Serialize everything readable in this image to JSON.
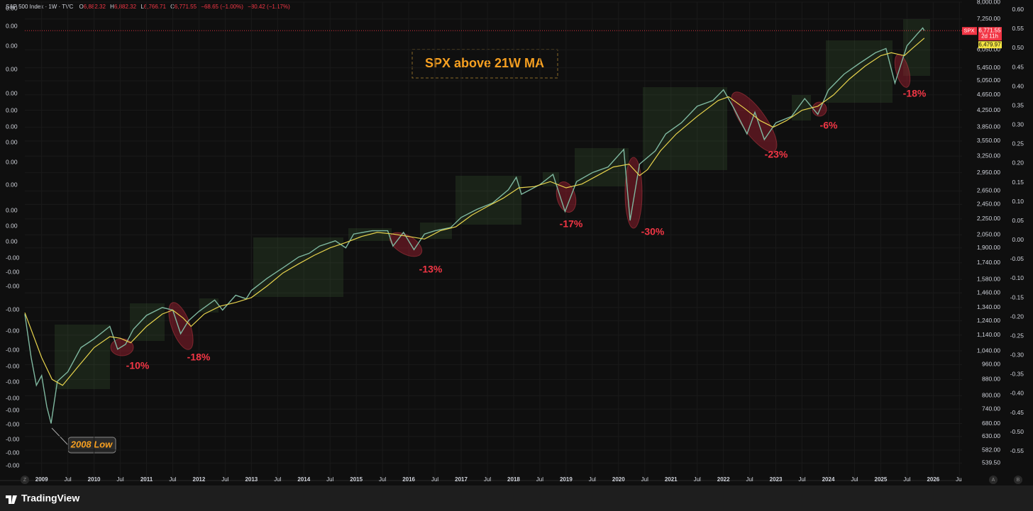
{
  "chart_data": {
    "type": "line",
    "title": "S&P 500 Index · 1W · TVC",
    "header": {
      "open_label": "O",
      "open": "6,882.32",
      "high_label": "H",
      "high": "6,882.32",
      "low_label": "L",
      "low": "6,766.71",
      "close_label": "C",
      "close": "6,771.55",
      "change": "−68.65 (−1.00%)",
      "change2": "−80.42 (−1.17%)"
    },
    "symbol": "SPX",
    "last_price": {
      "value": 6771.55,
      "label": "6,771.55"
    },
    "countdown": "2d 11h",
    "ma_last": {
      "value": 6479.97,
      "label": "6,479.97"
    },
    "callout": "SPX above 21W MA",
    "low_label": "2008 Low",
    "drawdown_labels": [
      "-10%",
      "-18%",
      "-13%",
      "-17%",
      "-30%",
      "-23%",
      "-6%",
      "-18%"
    ],
    "brand": "TradingView",
    "axis_buttons": [
      "Z",
      "A",
      "B"
    ],
    "log_scale": true,
    "xlim": [
      2008.68,
      2026.55
    ],
    "xticks": [
      2009,
      {
        "value": 2009.5,
        "label": "Jul"
      },
      2010,
      {
        "value": 2010.5,
        "label": "Jul"
      },
      2011,
      {
        "value": 2011.5,
        "label": "Jul"
      },
      2012,
      {
        "value": 2012.5,
        "label": "Jul"
      },
      2013,
      {
        "value": 2013.5,
        "label": "Jul"
      },
      2014,
      {
        "value": 2014.5,
        "label": "Jul"
      },
      2015,
      {
        "value": 2015.5,
        "label": "Jul"
      },
      2016,
      {
        "value": 2016.5,
        "label": "Jul"
      },
      2017,
      {
        "value": 2017.5,
        "label": "Jul"
      },
      2018,
      {
        "value": 2018.5,
        "label": "Jul"
      },
      2019,
      {
        "value": 2019.5,
        "label": "Jul"
      },
      2020,
      {
        "value": 2020.5,
        "label": "Jul"
      },
      2021,
      {
        "value": 2021.5,
        "label": "Jul"
      },
      2022,
      {
        "value": 2022.5,
        "label": "Jul"
      },
      2023,
      {
        "value": 2023.5,
        "label": "Jul"
      },
      2024,
      {
        "value": 2024.5,
        "label": "Jul"
      },
      2025,
      {
        "value": 2025.5,
        "label": "Jul"
      },
      2026,
      {
        "value": 2026.5,
        "label": "Jul"
      }
    ],
    "ylim": [
      483,
      8000
    ],
    "yticks": [
      {
        "value": 8000,
        "label": "8,000.00"
      },
      {
        "value": 7250,
        "label": "7,250.00"
      },
      {
        "value": 6050,
        "label": "6,050.00"
      },
      {
        "value": 5450,
        "label": "5,450.00"
      },
      {
        "value": 5050,
        "label": "5,050.00"
      },
      {
        "value": 4650,
        "label": "4,650.00"
      },
      {
        "value": 4250,
        "label": "4,250.00"
      },
      {
        "value": 3850,
        "label": "3,850.00"
      },
      {
        "value": 3550,
        "label": "3,550.00"
      },
      {
        "value": 3250,
        "label": "3,250.00"
      },
      {
        "value": 2950,
        "label": "2,950.00"
      },
      {
        "value": 2650,
        "label": "2,650.00"
      },
      {
        "value": 2450,
        "label": "2,450.00"
      },
      {
        "value": 2250,
        "label": "2,250.00"
      },
      {
        "value": 2050,
        "label": "2,050.00"
      },
      {
        "value": 1900,
        "label": "1,900.00"
      },
      {
        "value": 1740,
        "label": "1,740.00"
      },
      {
        "value": 1580,
        "label": "1,580.00"
      },
      {
        "value": 1460,
        "label": "1,460.00"
      },
      {
        "value": 1340,
        "label": "1,340.00"
      },
      {
        "value": 1240,
        "label": "1,240.00"
      },
      {
        "value": 1140,
        "label": "1,140.00"
      },
      {
        "value": 1040,
        "label": "1,040.00"
      },
      {
        "value": 960,
        "label": "960.00"
      },
      {
        "value": 880,
        "label": "880.00"
      },
      {
        "value": 800,
        "label": "800.00"
      },
      {
        "value": 740,
        "label": "740.00"
      },
      {
        "value": 680,
        "label": "680.00"
      },
      {
        "value": 630,
        "label": "630.00"
      },
      {
        "value": 582,
        "label": "582.00"
      },
      {
        "value": 539.5,
        "label": "539.50"
      }
    ],
    "y2lim": [
      -0.63,
      0.62
    ],
    "y2ticks": [
      {
        "value": 0.6,
        "label": "0.60"
      },
      0.55,
      {
        "value": 0.5,
        "label": "0.50"
      },
      0.45,
      {
        "value": 0.4,
        "label": "0.40"
      },
      0.35,
      {
        "value": 0.3,
        "label": "0.30"
      },
      0.25,
      {
        "value": 0.2,
        "label": "0.20"
      },
      0.15,
      {
        "value": 0.1,
        "label": "0.10"
      },
      0.05,
      {
        "value": 0,
        "label": "0.00"
      },
      -0.05,
      {
        "value": -0.1,
        "label": "-0.10"
      },
      -0.15,
      {
        "value": -0.2,
        "label": "-0.20"
      },
      -0.25,
      {
        "value": -0.3,
        "label": "-0.30"
      },
      -0.35,
      {
        "value": -0.4,
        "label": "-0.40"
      },
      -0.45,
      {
        "value": -0.5,
        "label": "-0.50"
      },
      -0.55
    ],
    "left_axis_labels": [
      "0.00",
      "0.00",
      "0.00",
      "0.00",
      "0.00",
      "0.00",
      "0.00",
      "0.00",
      "0.00",
      "0.00",
      "0.00",
      "0.00",
      "0.00",
      "-0.00",
      "-0.00",
      "-0.00",
      "-0.00",
      "-0.00",
      "-0.00",
      "-0.00",
      "-0.00",
      "-0.00",
      "-0.00",
      "-0.00",
      "-0.00",
      "-0.00",
      "-0.00"
    ],
    "series": [
      {
        "color": "#7fb8a0",
        "x": [
          2008.68,
          2008.8,
          2008.9,
          2009.0,
          2009.1,
          2009.18,
          2009.3,
          2009.5,
          2009.75,
          2010.0,
          2010.3,
          2010.45,
          2010.6,
          2010.75,
          2011.0,
          2011.3,
          2011.5,
          2011.65,
          2011.8,
          2012.0,
          2012.3,
          2012.45,
          2012.7,
          2012.9,
          2013.0,
          2013.3,
          2013.6,
          2013.9,
          2014.1,
          2014.3,
          2014.6,
          2014.8,
          2014.95,
          2015.3,
          2015.6,
          2015.7,
          2015.9,
          2016.1,
          2016.3,
          2016.5,
          2016.8,
          2017.0,
          2017.3,
          2017.6,
          2017.9,
          2018.05,
          2018.15,
          2018.5,
          2018.75,
          2018.98,
          2019.2,
          2019.5,
          2019.8,
          2020.1,
          2020.22,
          2020.4,
          2020.7,
          2020.9,
          2021.2,
          2021.5,
          2021.8,
          2022.0,
          2022.2,
          2022.45,
          2022.6,
          2022.78,
          2023.0,
          2023.3,
          2023.55,
          2023.8,
          2024.0,
          2024.3,
          2024.6,
          2024.9,
          2025.1,
          2025.27,
          2025.5,
          2025.7,
          2025.8,
          2025.83
        ],
        "values": [
          1290,
          1000,
          850,
          900,
          750,
          680,
          870,
          920,
          1060,
          1115,
          1200,
          1050,
          1080,
          1180,
          1280,
          1340,
          1320,
          1150,
          1240,
          1310,
          1400,
          1320,
          1440,
          1410,
          1480,
          1590,
          1690,
          1800,
          1840,
          1920,
          1980,
          1900,
          2060,
          2100,
          2100,
          1920,
          2080,
          1880,
          2060,
          2100,
          2140,
          2270,
          2380,
          2470,
          2670,
          2870,
          2600,
          2750,
          2920,
          2350,
          2800,
          2950,
          3050,
          3380,
          2230,
          3100,
          3350,
          3700,
          3950,
          4350,
          4500,
          4790,
          4300,
          3700,
          4200,
          3580,
          3950,
          4100,
          4550,
          4150,
          4780,
          5250,
          5600,
          5950,
          6100,
          4980,
          6200,
          6650,
          6880,
          6771.55
        ]
      },
      {
        "color": "#e8d44d",
        "x": [
          2008.68,
          2009.0,
          2009.2,
          2009.4,
          2009.7,
          2010.0,
          2010.3,
          2010.5,
          2010.7,
          2011.0,
          2011.3,
          2011.5,
          2011.7,
          2011.85,
          2012.1,
          2012.4,
          2012.7,
          2013.0,
          2013.3,
          2013.6,
          2013.9,
          2014.2,
          2014.5,
          2014.8,
          2015.1,
          2015.4,
          2015.7,
          2016.0,
          2016.3,
          2016.6,
          2016.9,
          2017.2,
          2017.5,
          2017.8,
          2018.1,
          2018.4,
          2018.7,
          2019.0,
          2019.3,
          2019.6,
          2019.9,
          2020.2,
          2020.4,
          2020.55,
          2020.8,
          2021.1,
          2021.5,
          2021.9,
          2022.1,
          2022.4,
          2022.7,
          2022.95,
          2023.2,
          2023.5,
          2023.8,
          2024.1,
          2024.4,
          2024.7,
          2025.0,
          2025.2,
          2025.45,
          2025.6,
          2025.83
        ],
        "values": [
          1300,
          1000,
          880,
          850,
          950,
          1060,
          1130,
          1120,
          1090,
          1200,
          1290,
          1320,
          1260,
          1200,
          1290,
          1350,
          1380,
          1420,
          1520,
          1640,
          1730,
          1820,
          1900,
          1960,
          2030,
          2080,
          2060,
          2030,
          2000,
          2100,
          2150,
          2300,
          2420,
          2540,
          2700,
          2720,
          2800,
          2700,
          2760,
          2900,
          3050,
          3100,
          2900,
          3000,
          3350,
          3700,
          4100,
          4500,
          4600,
          4300,
          4000,
          3850,
          4000,
          4250,
          4350,
          4650,
          5100,
          5500,
          5850,
          5950,
          5850,
          6100,
          6479.97
        ]
      }
    ]
  }
}
